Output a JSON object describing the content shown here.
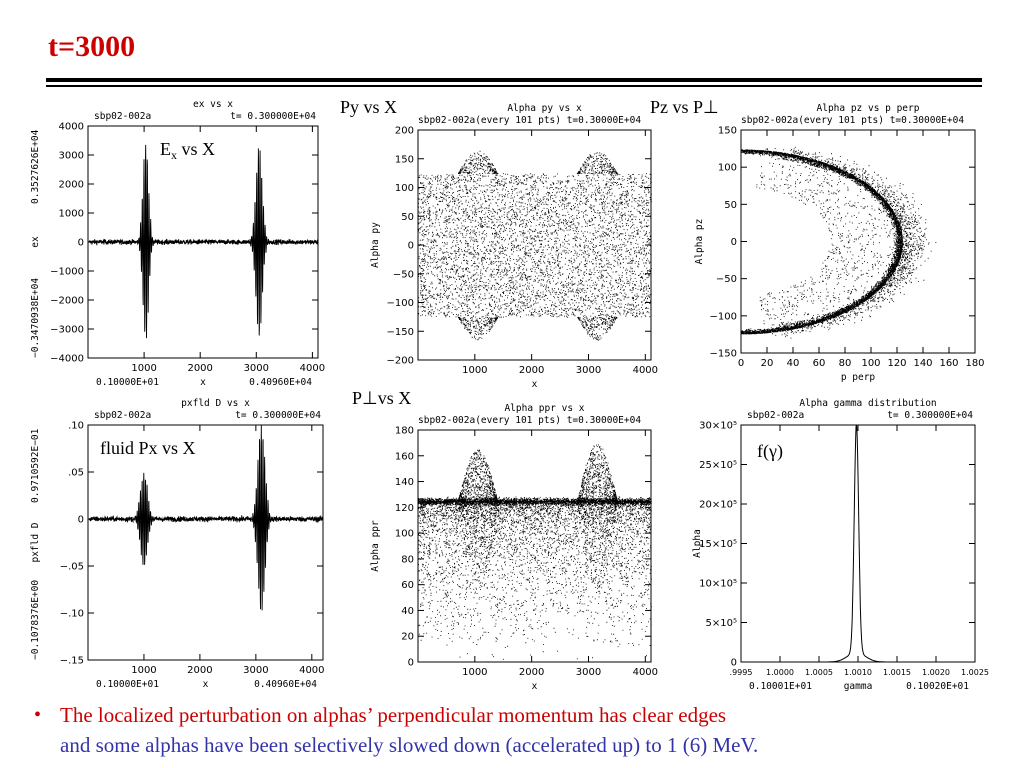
{
  "slide": {
    "title": "t=3000",
    "bullet_line1": "The localized perturbation on alphas’ perpendicular momentum has clear edges",
    "bullet_line2": "and some alphas have been selectively slowed down (accelerated up) to 1 (6) MeV.",
    "colors": {
      "title": "#cc0000",
      "bullet1": "#cc0000",
      "bullet2": "#3333aa"
    }
  },
  "chart_data": [
    {
      "id": "ex",
      "type": "line",
      "header_left": "sbp02-002a",
      "header_center": "ex         vs       x",
      "header_right": "t=  0.300000E+04",
      "annotation": "E",
      "annotation_sub": "x",
      "annotation_rest": " vs X",
      "xlabel": "x",
      "ylabel": "ex",
      "xmin_text": "0.10000E+01",
      "xmax_text": "0.40960E+04",
      "ymin_text": "−0.3470938E+04",
      "ymax_text": "0.3527626E+04",
      "xlim": [
        0,
        4100
      ],
      "ylim": [
        -4000,
        4000
      ],
      "xticks": [
        1000,
        2000,
        3000,
        4000
      ],
      "yticks": [
        -4000,
        -3000,
        -2000,
        -1000,
        0,
        1000,
        2000,
        3000,
        4000
      ],
      "yticklabels": [
        "−4000",
        "−3000",
        "−2000",
        "−1000",
        "0",
        "1000",
        "2000",
        "3000",
        "4000"
      ],
      "packets": [
        {
          "center": 1030,
          "width": 70,
          "amp": 3450,
          "period": 30
        },
        {
          "center": 3050,
          "width": 80,
          "amp": 3300,
          "period": 30
        }
      ],
      "noise": 150
    },
    {
      "id": "pxfld",
      "type": "line",
      "header_left": "sbp02-002a",
      "header_center": "pxfld D      vs       x",
      "header_right": "t=  0.300000E+04",
      "annotation": "fluid Px vs X",
      "xlabel": "x",
      "ylabel": "pxfld D",
      "xmin_text": "0.10000E+01",
      "xmax_text": "0.40960E+04",
      "ymin_text": "−0.1078376E+00",
      "ymax_text": "0.9710592E−01",
      "xlim": [
        0,
        4200
      ],
      "ylim": [
        -0.15,
        0.1
      ],
      "xticks": [
        1000,
        2000,
        3000,
        4000
      ],
      "yticks": [
        -0.15,
        -0.1,
        -0.05,
        0,
        0.05,
        0.1
      ],
      "yticklabels": [
        "−.15",
        "−.10",
        "−.05",
        "0",
        ".05",
        ".10"
      ],
      "packets": [
        {
          "center": 1000,
          "width": 90,
          "amp": 0.05,
          "period": 30
        },
        {
          "center": 3100,
          "width": 90,
          "amp": 0.1,
          "period": 30
        }
      ],
      "noise": 0.005
    },
    {
      "id": "py",
      "type": "scatter",
      "header_left": "sbp02-002a(every 101 pts) t=0.30000E+04",
      "header_center": "Alpha    py vs       x",
      "annotation": "Py vs X",
      "xlabel": "x",
      "ylabel": "Alpha    py",
      "xlim": [
        0,
        4100
      ],
      "ylim": [
        -200,
        200
      ],
      "xticks": [
        1000,
        2000,
        3000,
        4000
      ],
      "yticks": [
        -200,
        -150,
        -100,
        -50,
        0,
        50,
        100,
        150,
        200
      ],
      "yticklabels": [
        "−200",
        "−150",
        "−100",
        "−50",
        "0",
        "50",
        "100",
        "150",
        "200"
      ],
      "band": [
        -125,
        125
      ],
      "bumps": [
        {
          "x_range": [
            700,
            1400
          ],
          "extent": 165
        },
        {
          "x_range": [
            2800,
            3500
          ],
          "extent": 165
        }
      ]
    },
    {
      "id": "pz",
      "type": "scatter",
      "header_left": "sbp02-002a(every 101 pts) t=0.30000E+04",
      "header_center": "Alpha    pz vs     p perp",
      "annotation": "Pz vs P⊥",
      "xlabel": "p perp",
      "ylabel": "Alpha    pz",
      "xlim": [
        0,
        180
      ],
      "ylim": [
        -150,
        150
      ],
      "xticks": [
        0,
        20,
        40,
        60,
        80,
        100,
        120,
        140,
        160,
        180
      ],
      "yticks": [
        -150,
        -100,
        -50,
        0,
        50,
        100,
        150
      ],
      "yticklabels": [
        "−150",
        "−100",
        "−50",
        "0",
        "50",
        "100",
        "150"
      ],
      "shell_radius": 124
    },
    {
      "id": "pperp",
      "type": "scatter",
      "header_left": "sbp02-002a(every 101 pts) t=0.30000E+04",
      "header_center": "Alpha    ppr vs       x",
      "annotation": "P⊥vs X",
      "xlabel": "x",
      "ylabel": "Alpha    ppr",
      "xlim": [
        0,
        4100
      ],
      "ylim": [
        0,
        180
      ],
      "xticks": [
        1000,
        2000,
        3000,
        4000
      ],
      "yticks": [
        0,
        20,
        40,
        60,
        80,
        100,
        120,
        140,
        160,
        180
      ],
      "yticklabels": [
        "0",
        "20",
        "40",
        "60",
        "80",
        "100",
        "120",
        "140",
        "160",
        "180"
      ],
      "ring": 125,
      "bumps": [
        {
          "x_range": [
            700,
            1400
          ],
          "extent": 165
        },
        {
          "x_range": [
            2800,
            3500
          ],
          "extent": 170
        }
      ]
    },
    {
      "id": "fgamma",
      "type": "line",
      "header_left": "sbp02-002a",
      "header_center": "Alpha          gamma      distribution",
      "header_right": "t=  0.300000E+04",
      "annotation": "f(γ)",
      "xlabel": "gamma",
      "ylabel": "Alpha",
      "xmin_text": "0.10001E+01",
      "xmax_text": "0.10020E+01",
      "xlim": [
        0.9995,
        1.0025
      ],
      "ylim": [
        0,
        3000000
      ],
      "xticks": [
        0.9995,
        1.0,
        1.0005,
        1.001,
        1.0015,
        1.002,
        1.0025
      ],
      "xticklabels": [
        ".9995",
        "1.0000",
        "1.0005",
        "1.0010",
        "1.0015",
        "1.0020",
        "1.0025"
      ],
      "yticks": [
        0,
        500000,
        1000000,
        1500000,
        2000000,
        2500000,
        3000000
      ],
      "yticklabels": [
        "0",
        "5×10⁵",
        "10×10⁵",
        "15×10⁵",
        "20×10⁵",
        "25×10⁵",
        "30×10⁵"
      ],
      "peak": {
        "x": 1.00098,
        "y": 2900000,
        "width": 4e-05
      }
    }
  ]
}
